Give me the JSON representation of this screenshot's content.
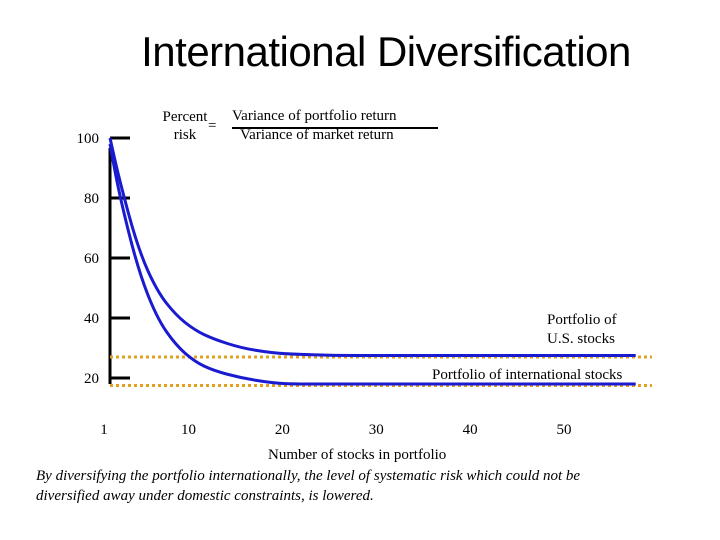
{
  "chart_data": {
    "type": "line",
    "title": "International Diversification",
    "formula": {
      "lhs_line1": "Percent",
      "lhs_line2": "risk",
      "equals": "=",
      "numerator": "Variance of portfolio return",
      "denominator": "Variance of market return"
    },
    "xlabel": "Number of stocks in portfolio",
    "x_ticks": [
      1,
      10,
      20,
      30,
      40,
      50
    ],
    "y_ticks": [
      20,
      40,
      60,
      80,
      100
    ],
    "xlim": [
      1,
      57
    ],
    "ylim": [
      20,
      100
    ],
    "series": [
      {
        "name": "Portfolio of U.S. stocks",
        "color": "#1a1ad0",
        "x": [
          1,
          2,
          4,
          6,
          8,
          10,
          12,
          15,
          18,
          20,
          25,
          30,
          40,
          50,
          57
        ],
        "y": [
          100,
          86,
          63,
          49,
          41,
          36,
          33,
          30,
          28.5,
          28,
          27.5,
          27.5,
          27.5,
          27.5,
          27.5
        ]
      },
      {
        "name": "Portfolio of international stocks",
        "color": "#1a1ad0",
        "x": [
          1,
          2,
          4,
          6,
          8,
          10,
          12,
          15,
          18,
          20,
          25,
          30,
          40,
          50,
          57
        ],
        "y": [
          98,
          81,
          56,
          40,
          31,
          25.5,
          22.5,
          20,
          18.5,
          18,
          18,
          18,
          18,
          18,
          18
        ]
      }
    ],
    "reference_lines": [
      {
        "y": 27.0,
        "color": "#e0a020",
        "style": "dotted"
      },
      {
        "y": 17.5,
        "color": "#e0a020",
        "style": "dotted"
      }
    ],
    "series_labels": {
      "us_line1": "Portfolio of",
      "us_line2": "U.S. stocks",
      "intl": "Portfolio of international stocks"
    },
    "caption": "By diversifying the portfolio internationally, the level of systematic risk which could not be diversified away under domestic constraints, is lowered."
  }
}
